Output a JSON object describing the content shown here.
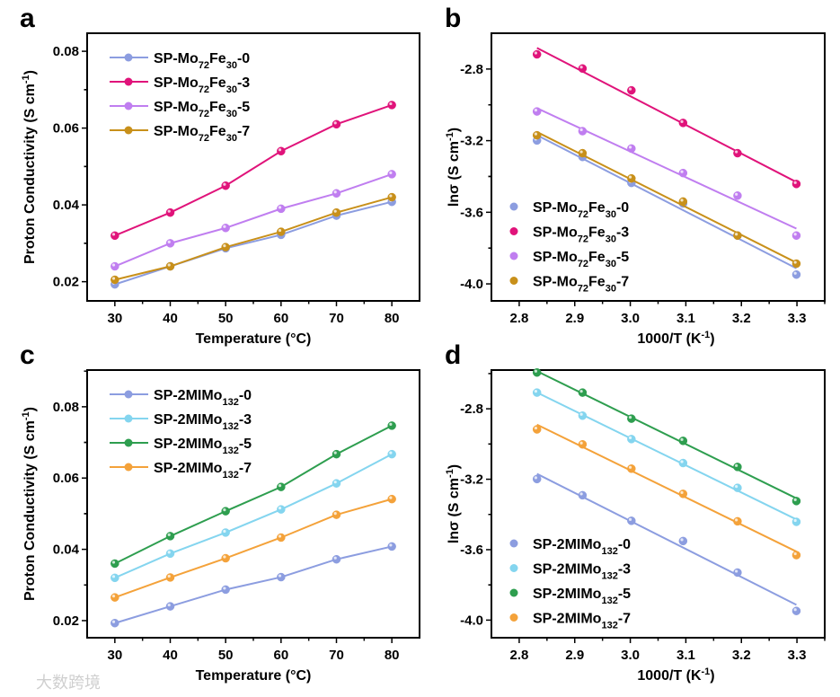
{
  "watermark": "大数跨境",
  "chart_data": [
    {
      "panel": "a",
      "type": "line",
      "xlabel": "Temperature (°C)",
      "ylabel": {
        "main": "Proton Conductivity (S cm",
        "sup": "-1",
        "end": ")"
      },
      "xlim": [
        25,
        85
      ],
      "ylim": [
        0.015,
        0.0847
      ],
      "xticks": [
        30,
        40,
        50,
        60,
        70,
        80
      ],
      "xtick_labels": [
        "30",
        "40",
        "50",
        "60",
        "70",
        "80"
      ],
      "yticks": [
        0.02,
        0.04,
        0.06,
        0.08
      ],
      "ytick_labels": [
        "0.02",
        "0.04",
        "0.06",
        "0.08"
      ],
      "legend_placement": "top-left",
      "x": [
        30,
        40,
        50,
        60,
        70,
        80
      ],
      "series": [
        {
          "name": "SP-Mo72Fe30-0",
          "label": [
            [
              "SP-Mo",
              ""
            ],
            [
              "72",
              "sub"
            ],
            [
              "Fe",
              ""
            ],
            [
              "30",
              "sub"
            ],
            [
              "-0",
              ""
            ]
          ],
          "color": "#8c9de0",
          "values": [
            0.0193,
            0.024,
            0.0287,
            0.0322,
            0.0372,
            0.0408
          ]
        },
        {
          "name": "SP-Mo72Fe30-3",
          "label": [
            [
              "SP-Mo",
              ""
            ],
            [
              "72",
              "sub"
            ],
            [
              "Fe",
              ""
            ],
            [
              "30",
              "sub"
            ],
            [
              "-3",
              ""
            ]
          ],
          "color": "#e0137a",
          "values": [
            0.032,
            0.038,
            0.045,
            0.054,
            0.061,
            0.066
          ]
        },
        {
          "name": "SP-Mo72Fe30-5",
          "label": [
            [
              "SP-Mo",
              ""
            ],
            [
              "72",
              "sub"
            ],
            [
              "Fe",
              ""
            ],
            [
              "30",
              "sub"
            ],
            [
              "-5",
              ""
            ]
          ],
          "color": "#c07ef0",
          "values": [
            0.024,
            0.03,
            0.034,
            0.039,
            0.043,
            0.048
          ]
        },
        {
          "name": "SP-Mo72Fe30-7",
          "label": [
            [
              "SP-Mo",
              ""
            ],
            [
              "72",
              "sub"
            ],
            [
              "Fe",
              ""
            ],
            [
              "30",
              "sub"
            ],
            [
              "-7",
              ""
            ]
          ],
          "color": "#c8901a",
          "values": [
            0.0205,
            0.024,
            0.029,
            0.033,
            0.038,
            0.042
          ]
        }
      ]
    },
    {
      "panel": "b",
      "type": "scatter",
      "fit": "linear",
      "xlabel": {
        "main": "1000/T (K",
        "sup": "-1",
        "end": ")"
      },
      "ylabel": {
        "main": "lnσ (S cm",
        "sup": "-1",
        "end": ")"
      },
      "xlim": [
        2.75,
        3.35
      ],
      "ylim": [
        -4.095,
        -2.6
      ],
      "xticks": [
        2.8,
        2.9,
        3.0,
        3.1,
        3.2,
        3.3
      ],
      "xtick_labels": [
        "2.8",
        "2.9",
        "3.0",
        "3.1",
        "3.2",
        "3.3"
      ],
      "yticks": [
        -2.8,
        -3.2,
        -3.6,
        -4.0
      ],
      "ytick_labels": [
        "-2.8",
        "-3.2",
        "-3.6",
        "-4.0"
      ],
      "legend_placement": "bottom-left",
      "x": [
        3.299,
        3.193,
        3.095,
        3.002,
        2.914,
        2.832
      ],
      "series": [
        {
          "name": "SP-Mo72Fe30-0",
          "label": [
            [
              "SP-Mo",
              ""
            ],
            [
              "72",
              "sub"
            ],
            [
              "Fe",
              ""
            ],
            [
              "30",
              "sub"
            ],
            [
              "-0",
              ""
            ]
          ],
          "color": "#8c9de0",
          "values": [
            -3.948,
            -3.73,
            -3.551,
            -3.436,
            -3.291,
            -3.199
          ]
        },
        {
          "name": "SP-Mo72Fe30-3",
          "label": [
            [
              "SP-Mo",
              ""
            ],
            [
              "72",
              "sub"
            ],
            [
              "Fe",
              ""
            ],
            [
              "30",
              "sub"
            ],
            [
              "-3",
              ""
            ]
          ],
          "color": "#e0137a",
          "values": [
            -3.442,
            -3.27,
            -3.101,
            -2.919,
            -2.797,
            -2.718
          ]
        },
        {
          "name": "SP-Mo72Fe30-5",
          "label": [
            [
              "SP-Mo",
              ""
            ],
            [
              "72",
              "sub"
            ],
            [
              "Fe",
              ""
            ],
            [
              "30",
              "sub"
            ],
            [
              "-5",
              ""
            ]
          ],
          "color": "#c07ef0",
          "values": [
            -3.73,
            -3.507,
            -3.381,
            -3.244,
            -3.147,
            -3.037
          ]
        },
        {
          "name": "SP-Mo72Fe30-7",
          "label": [
            [
              "SP-Mo",
              ""
            ],
            [
              "72",
              "sub"
            ],
            [
              "Fe",
              ""
            ],
            [
              "30",
              "sub"
            ],
            [
              "-7",
              ""
            ]
          ],
          "color": "#c8901a",
          "values": [
            -3.887,
            -3.73,
            -3.54,
            -3.411,
            -3.27,
            -3.17
          ]
        }
      ]
    },
    {
      "panel": "c",
      "type": "line",
      "xlabel": "Temperature (°C)",
      "ylabel": {
        "main": "Proton Conductivity (S cm",
        "sup": "-1",
        "end": ")"
      },
      "xlim": [
        25,
        85
      ],
      "ylim": [
        0.0152,
        0.0903
      ],
      "xticks": [
        30,
        40,
        50,
        60,
        70,
        80
      ],
      "xtick_labels": [
        "30",
        "40",
        "50",
        "60",
        "70",
        "80"
      ],
      "yticks": [
        0.02,
        0.04,
        0.06,
        0.08
      ],
      "ytick_labels": [
        "0.02",
        "0.04",
        "0.06",
        "0.08"
      ],
      "legend_placement": "top-left",
      "x": [
        30,
        40,
        50,
        60,
        70,
        80
      ],
      "series": [
        {
          "name": "SP-2MIMo132-0",
          "label": [
            [
              "SP-2MIMo",
              ""
            ],
            [
              "132",
              "sub"
            ],
            [
              "-0",
              ""
            ]
          ],
          "color": "#8c9de0",
          "values": [
            0.0193,
            0.024,
            0.0287,
            0.0322,
            0.0372,
            0.0408
          ]
        },
        {
          "name": "SP-2MIMo132-3",
          "label": [
            [
              "SP-2MIMo",
              ""
            ],
            [
              "132",
              "sub"
            ],
            [
              "-3",
              ""
            ]
          ],
          "color": "#84d5ef",
          "values": [
            0.032,
            0.0388,
            0.0447,
            0.0512,
            0.0585,
            0.0667
          ]
        },
        {
          "name": "SP-2MIMo132-5",
          "label": [
            [
              "SP-2MIMo",
              ""
            ],
            [
              "132",
              "sub"
            ],
            [
              "-5",
              ""
            ]
          ],
          "color": "#2e9e4f",
          "values": [
            0.036,
            0.0437,
            0.0507,
            0.0575,
            0.0667,
            0.0747
          ]
        },
        {
          "name": "SP-2MIMo132-7",
          "label": [
            [
              "SP-2MIMo",
              ""
            ],
            [
              "132",
              "sub"
            ],
            [
              "-7",
              ""
            ]
          ],
          "color": "#f4a23a",
          "values": [
            0.0265,
            0.0321,
            0.0375,
            0.0433,
            0.0497,
            0.0541
          ]
        }
      ]
    },
    {
      "panel": "d",
      "type": "scatter",
      "fit": "linear",
      "xlabel": {
        "main": "1000/T (K",
        "sup": "-1",
        "end": ")"
      },
      "ylabel": {
        "main": "lnσ (S cm",
        "sup": "-1",
        "end": ")"
      },
      "xlim": [
        2.75,
        3.35
      ],
      "ylim": [
        -4.1,
        -2.58
      ],
      "xticks": [
        2.8,
        2.9,
        3.0,
        3.1,
        3.2,
        3.3
      ],
      "xtick_labels": [
        "2.8",
        "2.9",
        "3.0",
        "3.1",
        "3.2",
        "3.3"
      ],
      "yticks": [
        -2.8,
        -3.2,
        -3.6,
        -4.0
      ],
      "ytick_labels": [
        "-2.8",
        "-3.2",
        "-3.6",
        "-4.0"
      ],
      "legend_placement": "bottom-left",
      "x": [
        3.299,
        3.193,
        3.095,
        3.002,
        2.914,
        2.832
      ],
      "series": [
        {
          "name": "SP-2MIMo132-0",
          "label": [
            [
              "SP-2MIMo",
              ""
            ],
            [
              "132",
              "sub"
            ],
            [
              "-0",
              ""
            ]
          ],
          "color": "#8c9de0",
          "values": [
            -3.948,
            -3.73,
            -3.551,
            -3.436,
            -3.291,
            -3.199
          ]
        },
        {
          "name": "SP-2MIMo132-3",
          "label": [
            [
              "SP-2MIMo",
              ""
            ],
            [
              "132",
              "sub"
            ],
            [
              "-3",
              ""
            ]
          ],
          "color": "#84d5ef",
          "values": [
            -3.442,
            -3.249,
            -3.108,
            -2.972,
            -2.839,
            -2.708
          ]
        },
        {
          "name": "SP-2MIMo132-5",
          "label": [
            [
              "SP-2MIMo",
              ""
            ],
            [
              "132",
              "sub"
            ],
            [
              "-5",
              ""
            ]
          ],
          "color": "#2e9e4f",
          "values": [
            -3.324,
            -3.13,
            -2.982,
            -2.856,
            -2.708,
            -2.594
          ]
        },
        {
          "name": "SP-2MIMo132-7",
          "label": [
            [
              "SP-2MIMo",
              ""
            ],
            [
              "132",
              "sub"
            ],
            [
              "-7",
              ""
            ]
          ],
          "color": "#f4a23a",
          "values": [
            -3.631,
            -3.439,
            -3.283,
            -3.14,
            -3.002,
            -2.917
          ]
        }
      ]
    }
  ]
}
